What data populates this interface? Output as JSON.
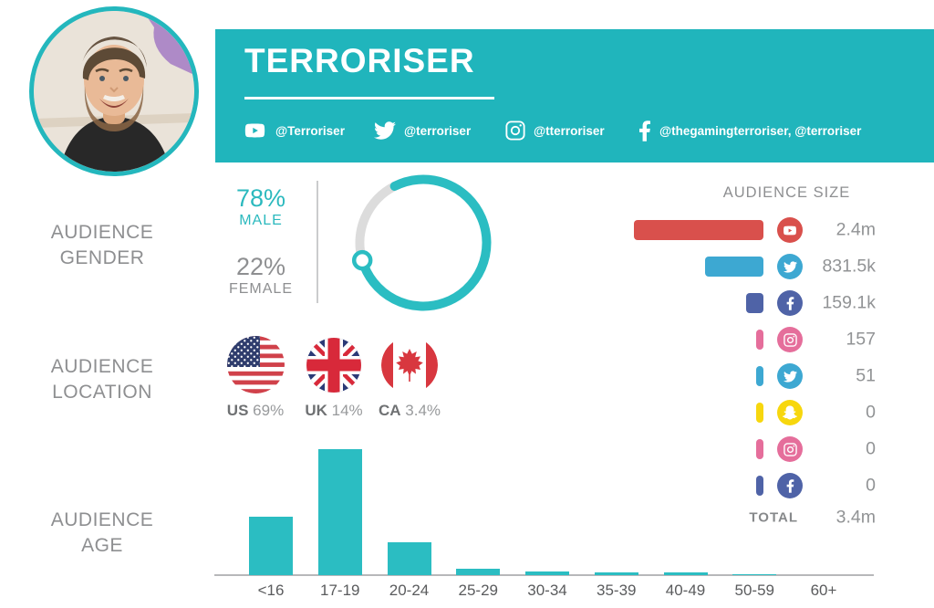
{
  "header": {
    "title": "TERRORISER",
    "socials": [
      {
        "icon": "youtube-icon",
        "handle": "@Terroriser"
      },
      {
        "icon": "twitter-icon",
        "handle": "@terroriser"
      },
      {
        "icon": "instagram-icon",
        "handle": "@tterroriser"
      },
      {
        "icon": "facebook-icon",
        "handle": "@thegamingterroriser, @terroriser"
      }
    ]
  },
  "colors": {
    "banner_teal": "#20b5bc",
    "chart_teal": "#2bbdc2",
    "ring_gray": "#dcdcdc",
    "youtube_red": "#d9504c",
    "twitter_blue": "#3da8d2",
    "facebook_indigo": "#4f63a7",
    "instagram_pink": "#e56e9b",
    "snapchat_yellow": "#f7d70e"
  },
  "sections": {
    "gender": {
      "label_line1": "AUDIENCE",
      "label_line2": "GENDER",
      "male_pct": "78%",
      "male_label": "MALE",
      "female_pct": "22%",
      "female_label": "FEMALE"
    },
    "location": {
      "label_line1": "AUDIENCE",
      "label_line2": "LOCATION",
      "countries": [
        {
          "code": "US",
          "pct": "69%",
          "flag": "us-flag-icon"
        },
        {
          "code": "UK",
          "pct": "14%",
          "flag": "uk-flag-icon"
        },
        {
          "code": "CA",
          "pct": "3.4%",
          "flag": "ca-flag-icon"
        }
      ]
    },
    "age": {
      "label_line1": "AUDIENCE",
      "label_line2": "AGE"
    },
    "size": {
      "title": "AUDIENCE SIZE",
      "rows": [
        {
          "platform": "YouTube",
          "icon": "youtube-icon",
          "color": "#d9504c",
          "value": 2400000,
          "label": "2.4m"
        },
        {
          "platform": "Twitter",
          "icon": "twitter-icon",
          "color": "#3da8d2",
          "value": 831500,
          "label": "831.5k"
        },
        {
          "platform": "Facebook",
          "icon": "facebook-icon",
          "color": "#4f63a7",
          "value": 159100,
          "label": "159.1k"
        },
        {
          "platform": "Instagram",
          "icon": "instagram-icon",
          "color": "#e56e9b",
          "value": 157,
          "label": "157"
        },
        {
          "platform": "Twitter",
          "icon": "twitter-icon",
          "color": "#3da8d2",
          "value": 51,
          "label": "51"
        },
        {
          "platform": "Snapchat",
          "icon": "snapchat-icon",
          "color": "#f7d70e",
          "value": 0,
          "label": "0"
        },
        {
          "platform": "Instagram",
          "icon": "instagram-icon",
          "color": "#e56e9b",
          "value": 0,
          "label": "0"
        },
        {
          "platform": "Facebook",
          "icon": "facebook-icon",
          "color": "#4f63a7",
          "value": 0,
          "label": "0"
        }
      ],
      "total_label": "TOTAL",
      "total_value": "3.4m"
    }
  },
  "chart_data": [
    {
      "id": "audience_gender",
      "type": "pie",
      "title": "AUDIENCE GENDER",
      "labels": [
        "MALE",
        "FEMALE"
      ],
      "values": [
        78,
        22
      ],
      "unit": "percent",
      "colors": [
        "#2bbdc2",
        "#dcdcdc"
      ],
      "style": "donut ring, teal = male, gray = female, small circular marker at segment boundary"
    },
    {
      "id": "audience_location",
      "type": "bar",
      "title": "AUDIENCE LOCATION",
      "categories": [
        "US",
        "UK",
        "CA"
      ],
      "values": [
        69,
        14,
        3.4
      ],
      "unit": "percent",
      "style": "circular country flags with percentage captions"
    },
    {
      "id": "audience_age",
      "type": "bar",
      "title": "AUDIENCE AGE",
      "categories": [
        "<16",
        "17-19",
        "20-24",
        "25-29",
        "30-34",
        "35-39",
        "40-49",
        "50-59",
        "60+"
      ],
      "values": [
        25,
        54,
        14,
        2.7,
        1.6,
        1.0,
        1.0,
        0.4,
        0
      ],
      "unit": "percent (estimated from bar heights; no value labels shown)",
      "xlabel": "",
      "ylabel": "",
      "grid": false,
      "bar_color": "#2bbdc2"
    },
    {
      "id": "audience_size",
      "type": "bar",
      "title": "AUDIENCE SIZE",
      "orientation": "horizontal, right-aligned",
      "categories": [
        "YouTube",
        "Twitter",
        "Facebook",
        "Instagram",
        "Twitter (2)",
        "Snapchat",
        "Instagram (2)",
        "Facebook (2)"
      ],
      "values": [
        2400000,
        831500,
        159100,
        157,
        51,
        0,
        0,
        0
      ],
      "value_labels": [
        "2.4m",
        "831.5k",
        "159.1k",
        "157",
        "51",
        "0",
        "0",
        "0"
      ],
      "total": {
        "label": "TOTAL",
        "value": "3.4m"
      }
    }
  ]
}
